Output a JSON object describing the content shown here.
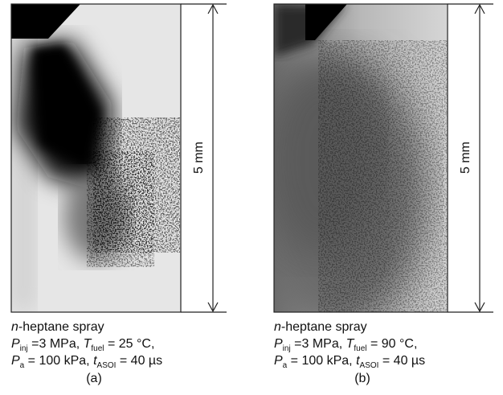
{
  "panels": [
    {
      "scale_label": "5 mm",
      "caption": [
        [
          "n",
          "-heptane spray"
        ],
        [
          "P",
          "inj",
          " =3 MPa, ",
          "T",
          "fuel",
          " = 25 °C,"
        ],
        [
          "P",
          "a",
          " = 100 kPa, ",
          "t",
          "ASOI",
          " = 40 µs"
        ]
      ],
      "label": "(a)"
    },
    {
      "scale_label": "5 mm",
      "caption": [
        [
          "n",
          "-heptane spray"
        ],
        [
          "P",
          "inj",
          " =3 MPa, ",
          "T",
          "fuel",
          " = 90 °C,"
        ],
        [
          "P",
          "a",
          " = 100 kPa, ",
          "t",
          "ASOI",
          " = 40 µs"
        ]
      ],
      "label": "(b)"
    }
  ]
}
